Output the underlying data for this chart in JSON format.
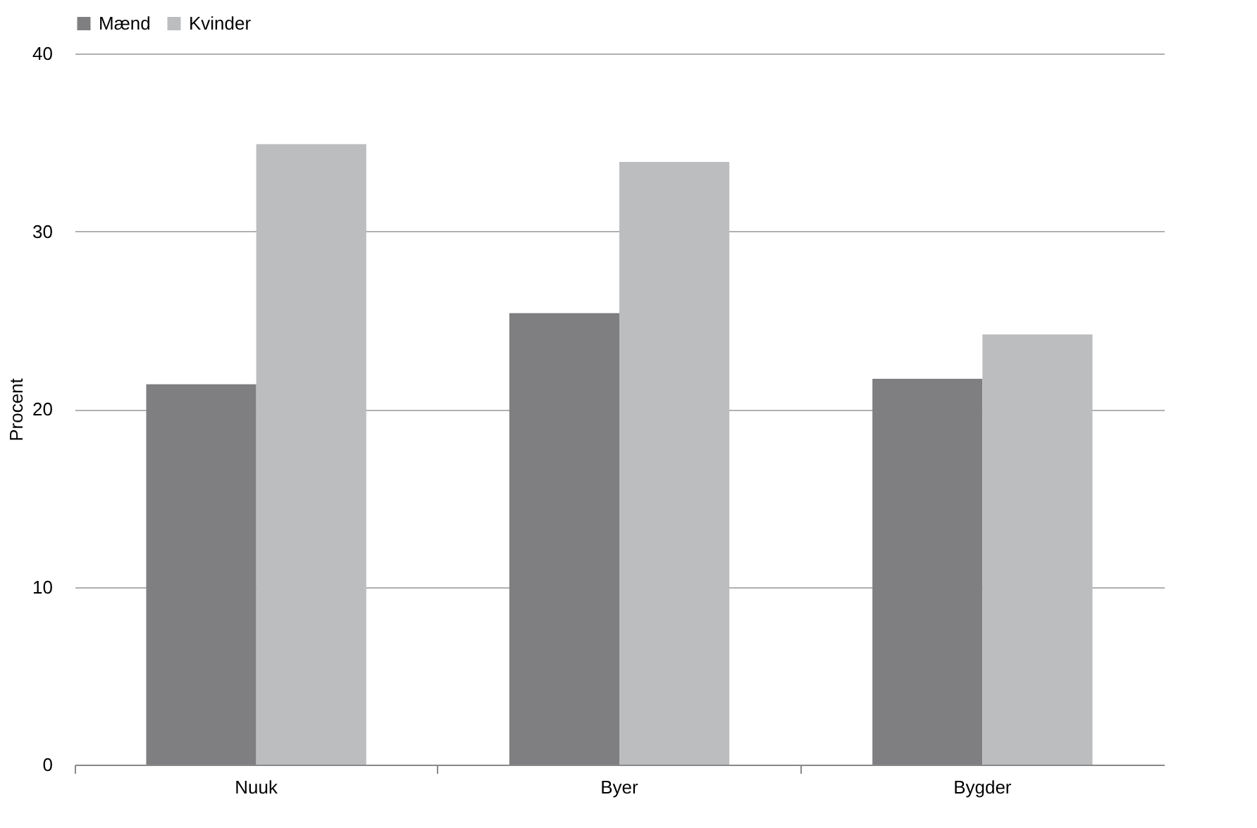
{
  "chart_data": {
    "type": "bar",
    "ylabel": "Procent",
    "categories": [
      "Nuuk",
      "Byer",
      "Bygder"
    ],
    "series": [
      {
        "name": "Mænd",
        "color": "#7f7f82",
        "values": [
          21.4,
          25.4,
          21.7
        ]
      },
      {
        "name": "Kvinder",
        "color": "#bcbdbf",
        "values": [
          34.9,
          33.9,
          24.2
        ]
      }
    ],
    "ylim": [
      0,
      40
    ],
    "yticks": [
      0,
      10,
      20,
      30,
      40
    ],
    "grid": "y",
    "legend": "top"
  }
}
